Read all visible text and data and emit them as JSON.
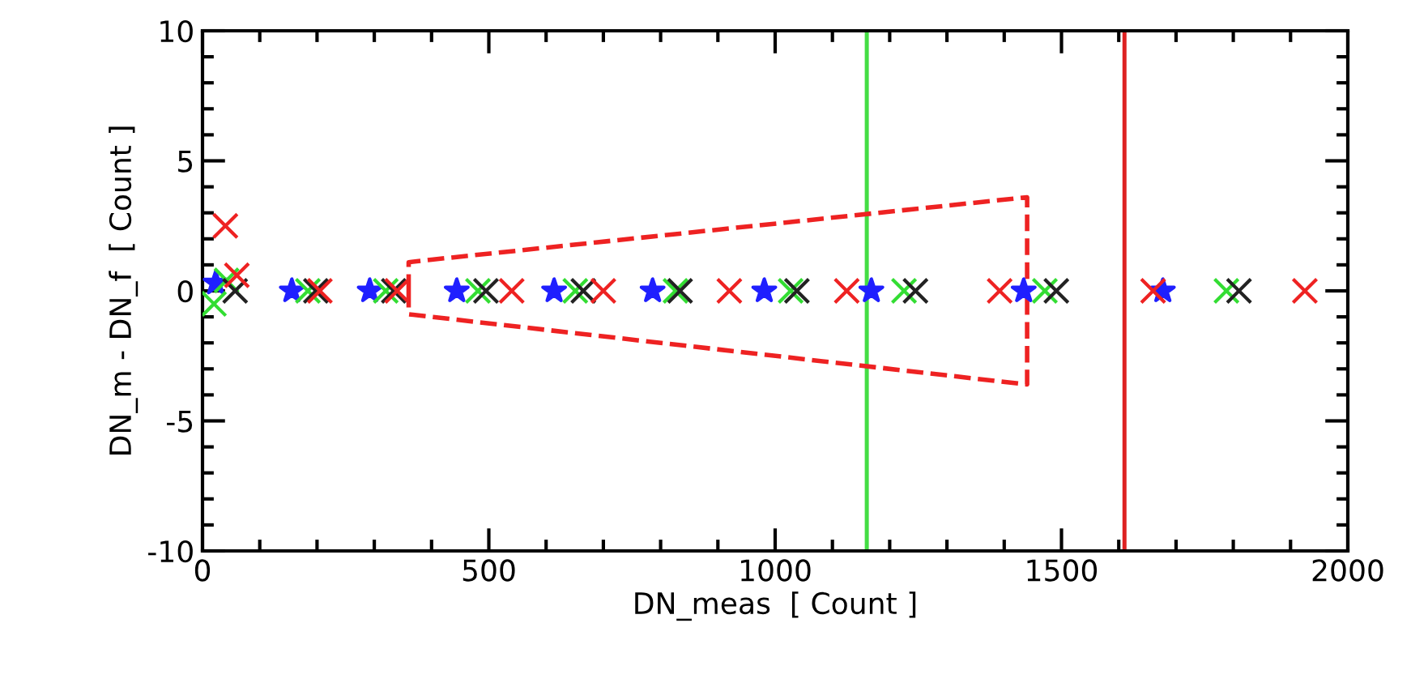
{
  "chart_data": {
    "type": "scatter",
    "xlabel": "DN_meas  [ Count ]",
    "ylabel": "DN_m - DN_f  [ Count ]",
    "xlim": [
      0,
      2000
    ],
    "ylim": [
      -10,
      10
    ],
    "xticks": [
      0,
      500,
      1000,
      1500,
      2000
    ],
    "yticks": [
      -10,
      -5,
      0,
      5,
      10
    ],
    "grid": false,
    "legend": false,
    "series": [
      {
        "color": "#1f1fff",
        "marker": "star",
        "x": [
          23,
          156,
          292,
          444,
          614,
          786,
          981,
          1168,
          1434,
          1677
        ],
        "values": [
          0.3,
          0,
          0,
          0,
          0,
          0,
          0,
          0,
          0,
          0
        ]
      },
      {
        "color": "#33dd33",
        "marker": "cross",
        "x": [
          20,
          42,
          184,
          320,
          481,
          651,
          826,
          1027,
          1225,
          1471,
          1788
        ],
        "values": [
          -0.5,
          0.4,
          0,
          0,
          0,
          0,
          0,
          0,
          0,
          0,
          0
        ]
      },
      {
        "color": "#222222",
        "marker": "cross",
        "x": [
          57,
          198,
          334,
          495,
          665,
          834,
          1038,
          1245,
          1491,
          1810
        ],
        "values": [
          0,
          0,
          0,
          0,
          0,
          0,
          0,
          0,
          0,
          0
        ]
      },
      {
        "color": "#ee2222",
        "marker": "cross",
        "x": [
          40,
          60,
          205,
          340,
          540,
          700,
          920,
          1125,
          1392,
          1660,
          1925
        ],
        "values": [
          2.5,
          0.6,
          0,
          0,
          0,
          0,
          0,
          0,
          0,
          0,
          0
        ]
      },
      {
        "type": "line",
        "color": "#ee2222",
        "marker": "none",
        "line_style": "dashed",
        "x": [
          360,
          360,
          400,
          1440,
          1440
        ],
        "values": [
          0,
          1.1,
          1.2,
          3.6,
          0
        ]
      },
      {
        "type": "line",
        "color": "#ee2222",
        "marker": "none",
        "line_style": "dashed",
        "x": [
          360,
          360,
          400,
          1440,
          1440
        ],
        "values": [
          0,
          -0.9,
          -1.0,
          -3.6,
          0
        ]
      }
    ],
    "ref_lines": [
      {
        "axis": "x",
        "value": 1160,
        "color": "#44dd44"
      },
      {
        "axis": "x",
        "value": 1610,
        "color": "#dd2222"
      }
    ]
  }
}
